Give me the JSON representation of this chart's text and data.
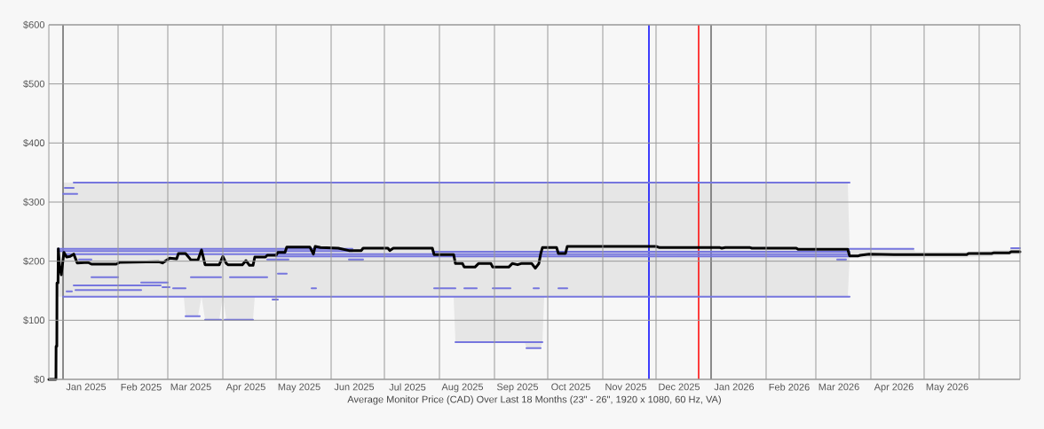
{
  "chart_data": {
    "type": "line",
    "xlabel": "Average Monitor Price (CAD) Over Last 18 Months (23\" - 26\", 1920 x 1080, 60 Hz, VA)",
    "xlim": [
      "2024-12-24",
      "2026-06-24"
    ],
    "ylim": [
      0,
      600
    ],
    "xticks": [
      {
        "value": "2025-01-14",
        "label": "Jan 2025"
      },
      {
        "value": "2025-02-01",
        "label": null
      },
      {
        "value": "2025-02-14",
        "label": "Feb 2025"
      },
      {
        "value": "2025-03-01",
        "label": null
      },
      {
        "value": "2025-03-14",
        "label": "Mar 2025"
      },
      {
        "value": "2025-04-01",
        "label": null
      },
      {
        "value": "2025-04-14",
        "label": "Apr 2025"
      },
      {
        "value": "2025-05-01",
        "label": null
      },
      {
        "value": "2025-05-14",
        "label": "May 2025"
      },
      {
        "value": "2025-06-01",
        "label": null
      },
      {
        "value": "2025-06-14",
        "label": "Jun 2025"
      },
      {
        "value": "2025-07-01",
        "label": null
      },
      {
        "value": "2025-07-14",
        "label": "Jul 2025"
      },
      {
        "value": "2025-08-01",
        "label": null
      },
      {
        "value": "2025-08-14",
        "label": "Aug 2025"
      },
      {
        "value": "2025-09-01",
        "label": null
      },
      {
        "value": "2025-09-14",
        "label": "Sep 2025"
      },
      {
        "value": "2025-10-01",
        "label": null
      },
      {
        "value": "2025-10-14",
        "label": "Oct 2025"
      },
      {
        "value": "2025-11-01",
        "label": null
      },
      {
        "value": "2025-11-14",
        "label": "Nov 2025"
      },
      {
        "value": "2025-12-01",
        "label": null
      },
      {
        "value": "2025-12-14",
        "label": "Dec 2025"
      },
      {
        "value": "2026-01-14",
        "label": "Jan 2026"
      },
      {
        "value": "2026-02-01",
        "label": null
      },
      {
        "value": "2026-02-14",
        "label": "Feb 2026"
      },
      {
        "value": "2026-03-01",
        "label": null
      },
      {
        "value": "2026-03-14",
        "label": "Mar 2026"
      },
      {
        "value": "2026-04-01",
        "label": null
      },
      {
        "value": "2026-04-14",
        "label": "Apr 2026"
      },
      {
        "value": "2026-05-01",
        "label": null
      },
      {
        "value": "2026-05-14",
        "label": "May 2026"
      },
      {
        "value": "2026-06-01",
        "label": null
      }
    ],
    "yticks": [
      {
        "value": 0,
        "label": "$0"
      },
      {
        "value": 100,
        "label": "$100"
      },
      {
        "value": 200,
        "label": "$200"
      },
      {
        "value": 300,
        "label": "$300"
      },
      {
        "value": 400,
        "label": "$400"
      },
      {
        "value": 500,
        "label": "$500"
      },
      {
        "value": 600,
        "label": "$600"
      }
    ],
    "grid": true,
    "ref_lines": [
      {
        "axis": "x",
        "value": "2025-01-01",
        "color": "#666666"
      },
      {
        "axis": "x",
        "value": "2025-11-27",
        "color": "#0000ff"
      },
      {
        "axis": "x",
        "value": "2025-12-25",
        "color": "#ff0000"
      },
      {
        "axis": "x",
        "value": "2026-01-01",
        "color": "#666666"
      }
    ],
    "series": [
      {
        "color": "#7676de",
        "x": [
          "2025-01-07",
          "2026-03-20"
        ],
        "values": [
          333,
          333
        ]
      },
      {
        "color": "#7676de",
        "x": [
          "2025-01-02",
          "2025-01-07"
        ],
        "values": [
          324,
          324
        ]
      },
      {
        "color": "#7676de",
        "x": [
          "2025-01-01",
          "2025-01-09"
        ],
        "values": [
          314,
          314
        ]
      },
      {
        "color": "#7676de",
        "x": [
          "2025-01-01",
          "2026-03-20"
        ],
        "values": [
          140,
          140
        ]
      },
      {
        "color": "#7676de",
        "x": [
          "2024-12-29",
          "2025-06-13"
        ],
        "values": [
          221,
          221
        ]
      },
      {
        "color": "#7676de",
        "x": [
          "2024-12-29",
          "2025-06-13"
        ],
        "values": [
          217,
          217
        ]
      },
      {
        "color": "#7676de",
        "x": [
          "2025-01-01",
          "2026-03-20"
        ],
        "values": [
          212,
          212
        ]
      },
      {
        "color": "#7676de",
        "x": [
          "2025-05-01",
          "2026-03-20"
        ],
        "values": [
          208,
          208
        ]
      },
      {
        "color": "#7676de",
        "x": [
          "2025-07-29",
          "2026-03-20"
        ],
        "values": [
          216,
          216
        ]
      },
      {
        "color": "#7676de",
        "x": [
          "2025-01-10",
          "2025-01-17"
        ],
        "values": [
          203,
          203
        ]
      },
      {
        "color": "#7676de",
        "x": [
          "2025-04-26",
          "2025-05-08"
        ],
        "values": [
          203,
          203
        ]
      },
      {
        "color": "#7676de",
        "x": [
          "2025-06-11",
          "2025-06-19"
        ],
        "values": [
          203,
          203
        ]
      },
      {
        "color": "#7676de",
        "x": [
          "2026-03-13",
          "2026-03-18"
        ],
        "values": [
          203,
          203
        ]
      },
      {
        "color": "#7676de",
        "x": [
          "2025-01-17",
          "2025-02-01"
        ],
        "values": [
          173,
          173
        ]
      },
      {
        "color": "#7676de",
        "x": [
          "2025-03-14",
          "2025-03-31"
        ],
        "values": [
          173,
          173
        ]
      },
      {
        "color": "#7676de",
        "x": [
          "2025-04-05",
          "2025-04-26"
        ],
        "values": [
          173,
          173
        ]
      },
      {
        "color": "#7676de",
        "x": [
          "2025-05-02",
          "2025-05-07"
        ],
        "values": [
          179,
          179
        ]
      },
      {
        "color": "#7676de",
        "x": [
          "2025-02-14",
          "2025-03-01"
        ],
        "values": [
          164,
          164
        ]
      },
      {
        "color": "#7676de",
        "x": [
          "2025-01-07",
          "2025-02-25"
        ],
        "values": [
          159,
          159
        ]
      },
      {
        "color": "#7676de",
        "x": [
          "2025-02-26",
          "2025-03-02"
        ],
        "values": [
          156,
          156
        ]
      },
      {
        "color": "#7676de",
        "x": [
          "2025-03-04",
          "2025-03-11"
        ],
        "values": [
          154,
          154
        ]
      },
      {
        "color": "#7676de",
        "x": [
          "2025-05-21",
          "2025-05-23T12:00"
        ],
        "values": [
          154,
          154
        ]
      },
      {
        "color": "#7676de",
        "x": [
          "2025-07-29",
          "2025-08-10"
        ],
        "values": [
          154,
          154
        ]
      },
      {
        "color": "#7676de",
        "x": [
          "2025-08-15",
          "2025-08-22"
        ],
        "values": [
          154,
          154
        ]
      },
      {
        "color": "#7676de",
        "x": [
          "2025-08-31",
          "2025-09-10"
        ],
        "values": [
          154,
          154
        ]
      },
      {
        "color": "#7676de",
        "x": [
          "2025-09-23",
          "2025-09-26"
        ],
        "values": [
          154,
          154
        ]
      },
      {
        "color": "#7676de",
        "x": [
          "2025-10-07",
          "2025-10-12"
        ],
        "values": [
          154,
          154
        ]
      },
      {
        "color": "#7676de",
        "x": [
          "2025-01-08",
          "2025-02-14"
        ],
        "values": [
          151,
          151
        ]
      },
      {
        "color": "#7676de",
        "x": [
          "2025-01-03",
          "2025-01-06"
        ],
        "values": [
          149,
          149
        ]
      },
      {
        "color": "#7676de",
        "x": [
          "2025-03-11",
          "2025-03-19"
        ],
        "values": [
          107,
          107
        ]
      },
      {
        "color": "#7676de",
        "x": [
          "2025-03-22",
          "2025-03-31"
        ],
        "values": [
          101,
          101
        ]
      },
      {
        "color": "#7676de",
        "x": [
          "2025-04-02",
          "2025-04-18"
        ],
        "values": [
          101,
          101
        ]
      },
      {
        "color": "#7676de",
        "x": [
          "2025-08-10",
          "2025-09-28"
        ],
        "values": [
          63,
          63
        ]
      },
      {
        "color": "#7676de",
        "x": [
          "2025-09-19",
          "2025-09-27"
        ],
        "values": [
          53,
          53
        ]
      },
      {
        "color": "#7676de",
        "x": [
          "2025-04-29",
          "2025-05-02"
        ],
        "values": [
          135,
          135
        ]
      },
      {
        "color": "#7676de",
        "x": [
          "2026-03-20",
          "2026-04-25"
        ],
        "values": [
          221,
          221
        ]
      },
      {
        "color": "#7676de",
        "x": [
          "2026-06-19",
          "2026-06-24"
        ],
        "values": [
          222,
          222
        ]
      },
      {
        "color": "#000000",
        "x": [
          "2024-12-24",
          "2024-12-28T00:00",
          "2024-12-28T02:00",
          "2024-12-28T12:00",
          "2024-12-28T14:00",
          "2024-12-29T04:00",
          "2024-12-29T08:00",
          "2024-12-30",
          "2024-12-31",
          "2025-01-01T12:00",
          "2025-01-03",
          "2025-01-05",
          "2025-01-07",
          "2025-01-09",
          "2025-01-15",
          "2025-01-17",
          "2025-01-31",
          "2025-02-02",
          "2025-02-24",
          "2025-02-26",
          "2025-02-28",
          "2025-03-02",
          "2025-03-06",
          "2025-03-07",
          "2025-03-10",
          "2025-03-11",
          "2025-03-13",
          "2025-03-14",
          "2025-03-18",
          "2025-03-20",
          "2025-03-22",
          "2025-03-30",
          "2025-04-01",
          "2025-04-03",
          "2025-04-04",
          "2025-04-12",
          "2025-04-14",
          "2025-04-16",
          "2025-04-18",
          "2025-04-19",
          "2025-04-25",
          "2025-04-26",
          "2025-04-28",
          "2025-04-29",
          "2025-05-01",
          "2025-05-02",
          "2025-05-06",
          "2025-05-07",
          "2025-05-20",
          "2025-05-22",
          "2025-05-23",
          "2025-05-26",
          "2025-06-05",
          "2025-06-11",
          "2025-06-18",
          "2025-06-19",
          "2025-07-03",
          "2025-07-04",
          "2025-07-06",
          "2025-07-28",
          "2025-07-29",
          "2025-08-09",
          "2025-08-10",
          "2025-08-14",
          "2025-08-15",
          "2025-08-21",
          "2025-08-23",
          "2025-08-30",
          "2025-08-31",
          "2025-09-09",
          "2025-09-11",
          "2025-09-14",
          "2025-09-16",
          "2025-09-18",
          "2025-09-19",
          "2025-09-22",
          "2025-09-24",
          "2025-09-26",
          "2025-09-27",
          "2025-09-28",
          "2025-09-29",
          "2025-10-06",
          "2025-10-07",
          "2025-10-11",
          "2025-10-12",
          "2025-12-01",
          "2025-12-03",
          "2026-01-06",
          "2026-01-07",
          "2026-01-09",
          "2026-01-23",
          "2026-01-24",
          "2026-02-18",
          "2026-02-19",
          "2026-03-19",
          "2026-03-20",
          "2026-03-25",
          "2026-03-26",
          "2026-03-31",
          "2026-04-14",
          "2026-04-25",
          "2026-04-26",
          "2026-05-25",
          "2026-05-26",
          "2026-06-08",
          "2026-06-09",
          "2026-06-18",
          "2026-06-19",
          "2026-06-24"
        ],
        "values": [
          0,
          0,
          56,
          56,
          163,
          163,
          221,
          192,
          177,
          215,
          207,
          208,
          212,
          197,
          198,
          195,
          195,
          198,
          199,
          197,
          201,
          205,
          204,
          213,
          213,
          213,
          206,
          202,
          202,
          219,
          194,
          194,
          208,
          196,
          194,
          194,
          201,
          193,
          193,
          207,
          207,
          210,
          210,
          210,
          210,
          215,
          215,
          224,
          224,
          212,
          225,
          223,
          222,
          218,
          218,
          222,
          222,
          218,
          222,
          222,
          211,
          211,
          196,
          196,
          190,
          190,
          196,
          196,
          190,
          190,
          196,
          194,
          196,
          196,
          196,
          196,
          188,
          196,
          212,
          223,
          223,
          223,
          213,
          213,
          225,
          225,
          223,
          223,
          222,
          223,
          223,
          222,
          222,
          220,
          220,
          209,
          209,
          210,
          212,
          211,
          211,
          211,
          211,
          213,
          213,
          214,
          214,
          216,
          216
        ],
        "lower": [
          null,
          null,
          null,
          null,
          null,
          140,
          140,
          140,
          140,
          140,
          140,
          140,
          140,
          140,
          140,
          140,
          140,
          140,
          140,
          140,
          140,
          140,
          140,
          140,
          140,
          107,
          107,
          107,
          107,
          140,
          101,
          101,
          140,
          101,
          101,
          101,
          101,
          101,
          101,
          140,
          140,
          140,
          140,
          135,
          135,
          140,
          140,
          140,
          140,
          140,
          140,
          140,
          140,
          140,
          140,
          140,
          140,
          140,
          140,
          140,
          140,
          140,
          63,
          63,
          63,
          63,
          63,
          63,
          63,
          63,
          63,
          63,
          63,
          63,
          53,
          53,
          53,
          53,
          53,
          63,
          140,
          140,
          140,
          140,
          140,
          140,
          140,
          140,
          140,
          140,
          140,
          140,
          140,
          140,
          140,
          206,
          206,
          206,
          206,
          206,
          206,
          206,
          206,
          207,
          208,
          209,
          210,
          211,
          211
        ],
        "upper": [
          null,
          null,
          null,
          null,
          null,
          221,
          221,
          221,
          221,
          333,
          333,
          333,
          333,
          333,
          333,
          333,
          333,
          333,
          333,
          333,
          333,
          333,
          333,
          333,
          333,
          333,
          333,
          333,
          333,
          333,
          333,
          333,
          333,
          333,
          333,
          333,
          333,
          333,
          333,
          333,
          333,
          333,
          333,
          333,
          333,
          333,
          333,
          333,
          333,
          333,
          333,
          333,
          333,
          333,
          333,
          333,
          333,
          333,
          333,
          333,
          333,
          333,
          333,
          333,
          333,
          333,
          333,
          333,
          333,
          333,
          333,
          333,
          333,
          333,
          333,
          333,
          333,
          333,
          333,
          333,
          333,
          333,
          333,
          333,
          333,
          333,
          333,
          333,
          333,
          333,
          333,
          333,
          333,
          333,
          333,
          221,
          221,
          221,
          221,
          221,
          221,
          216,
          216,
          216,
          218,
          219,
          219,
          222,
          222
        ]
      }
    ]
  }
}
